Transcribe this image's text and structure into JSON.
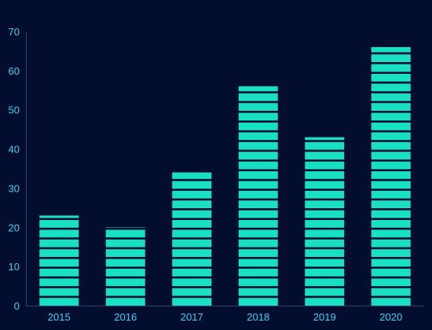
{
  "chart_data": {
    "type": "bar",
    "categories": [
      "2015",
      "2016",
      "2017",
      "2018",
      "2019",
      "2020"
    ],
    "values": [
      23,
      20,
      34,
      56,
      43,
      66
    ],
    "ylim": [
      0,
      70
    ],
    "yticks": [
      0,
      10,
      20,
      30,
      40,
      50,
      60,
      70
    ],
    "title": "",
    "xlabel": "",
    "ylabel": "",
    "grid": false,
    "colors": {
      "background": "#020d30",
      "bar": "#19e0c2",
      "axis": "#2a3f72",
      "tick_text": "#39d3f2"
    }
  }
}
